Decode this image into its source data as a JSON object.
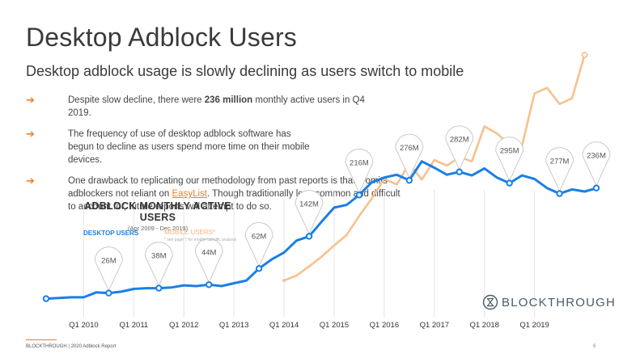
{
  "title": "Desktop Adblock Users",
  "subtitle": "Desktop adblock usage is slowly declining as users switch to mobile",
  "bullets": [
    {
      "pre": "Despite slow decline, there were ",
      "bold": "236 million",
      "post": " monthly active users in Q4 2019."
    },
    {
      "text": "The frequency of use of desktop adblock software has begun to decline as users spend more time on their mobile devices."
    },
    {
      "pre": "One drawback to replicating our methodology from past reports is that it omits adblockers not reliant on ",
      "link": "EasyList",
      "post": ". Though traditionally less common and difficult to account for, future reports will attempt to do so."
    }
  ],
  "chart_data": {
    "type": "line",
    "title": "ADBLOCK MONTHLY ACTIVE USERS",
    "subtitle": "(Apr 2009 - Dec 2019)",
    "series": [
      {
        "name": "DESKTOP USERS",
        "color": "#1a7fe6",
        "points": [
          [
            2009.25,
            12
          ],
          [
            2009.5,
            13
          ],
          [
            2009.75,
            14
          ],
          [
            2010.0,
            14
          ],
          [
            2010.25,
            21
          ],
          [
            2010.5,
            20
          ],
          [
            2010.75,
            22
          ],
          [
            2011.0,
            26
          ],
          [
            2011.25,
            27
          ],
          [
            2011.5,
            27
          ],
          [
            2011.75,
            28
          ],
          [
            2012.0,
            31
          ],
          [
            2012.25,
            30
          ],
          [
            2012.5,
            32
          ],
          [
            2012.75,
            30
          ],
          [
            2013.0,
            34
          ],
          [
            2013.25,
            38
          ],
          [
            2013.5,
            55
          ],
          [
            2013.75,
            68
          ],
          [
            2014.0,
            78
          ],
          [
            2014.25,
            95
          ],
          [
            2014.5,
            101
          ],
          [
            2014.75,
            122
          ],
          [
            2015.0,
            142
          ],
          [
            2015.25,
            146
          ],
          [
            2015.5,
            160
          ],
          [
            2015.75,
            178
          ],
          [
            2016.0,
            185
          ],
          [
            2016.25,
            189
          ],
          [
            2016.5,
            181
          ],
          [
            2016.75,
            208
          ],
          [
            2017.0,
            199
          ],
          [
            2017.25,
            189
          ],
          [
            2017.5,
            193
          ],
          [
            2017.75,
            188
          ],
          [
            2018.0,
            198
          ],
          [
            2018.25,
            185
          ],
          [
            2018.5,
            177
          ],
          [
            2018.75,
            188
          ],
          [
            2019.0,
            183
          ],
          [
            2019.25,
            170
          ],
          [
            2019.5,
            162
          ],
          [
            2019.75,
            168
          ]
        ],
        "labeled": [
          {
            "x": 2009.25,
            "label": ""
          },
          {
            "x": 2010.5,
            "label": "26M"
          },
          {
            "x": 2011.5,
            "label": "38M"
          },
          {
            "x": 2012.5,
            "label": "44M"
          },
          {
            "x": 2013.5,
            "label": "62M"
          },
          {
            "x": 2014.5,
            "label": "142M"
          },
          {
            "x": 2015.5,
            "label": "216M"
          },
          {
            "x": 2016.5,
            "label": "276M"
          },
          {
            "x": 2017.5,
            "label": "282M"
          },
          {
            "x": 2018.5,
            "label": "295M"
          },
          {
            "x": 2019.5,
            "label": "277M"
          },
          {
            "x": 2020.25,
            "label": "236M"
          }
        ]
      },
      {
        "name": "MOBILE USERS*",
        "color": "#f8c08f",
        "points": [
          [
            2014.0,
            38
          ],
          [
            2014.25,
            45
          ],
          [
            2014.5,
            58
          ],
          [
            2014.75,
            72
          ],
          [
            2015.0,
            88
          ],
          [
            2015.25,
            103
          ],
          [
            2015.5,
            130
          ],
          [
            2015.75,
            155
          ],
          [
            2016.0,
            183
          ],
          [
            2016.25,
            175
          ],
          [
            2016.5,
            205
          ],
          [
            2016.75,
            182
          ],
          [
            2017.0,
            210
          ],
          [
            2017.25,
            202
          ],
          [
            2017.5,
            214
          ],
          [
            2017.75,
            208
          ],
          [
            2018.0,
            258
          ],
          [
            2018.25,
            248
          ],
          [
            2018.5,
            232
          ],
          [
            2018.75,
            230
          ],
          [
            2019.0,
            305
          ],
          [
            2019.25,
            313
          ],
          [
            2019.5,
            290
          ],
          [
            2019.75,
            298
          ],
          [
            2020.0,
            360
          ]
        ]
      }
    ],
    "x_ticks": [
      "Q1 2010",
      "Q1 2011",
      "Q1 2012",
      "Q1 2013",
      "Q1 2014",
      "Q1 2015",
      "Q1 2016",
      "Q1 2017",
      "Q1 2018",
      "Q1 2019"
    ],
    "x_tick_values": [
      2010,
      2011,
      2012,
      2013,
      2014,
      2015,
      2016,
      2017,
      2018,
      2019
    ],
    "xlim": [
      2009.25,
      2020.25
    ],
    "ylim": [
      0,
      360
    ],
    "legend_note": "* see page 7 for mobile-specific analysis"
  },
  "brand": "BLOCKTHROUGH",
  "footer": "BLOCKTHROUGH | 2020 Adblock Report",
  "page_number": "6"
}
